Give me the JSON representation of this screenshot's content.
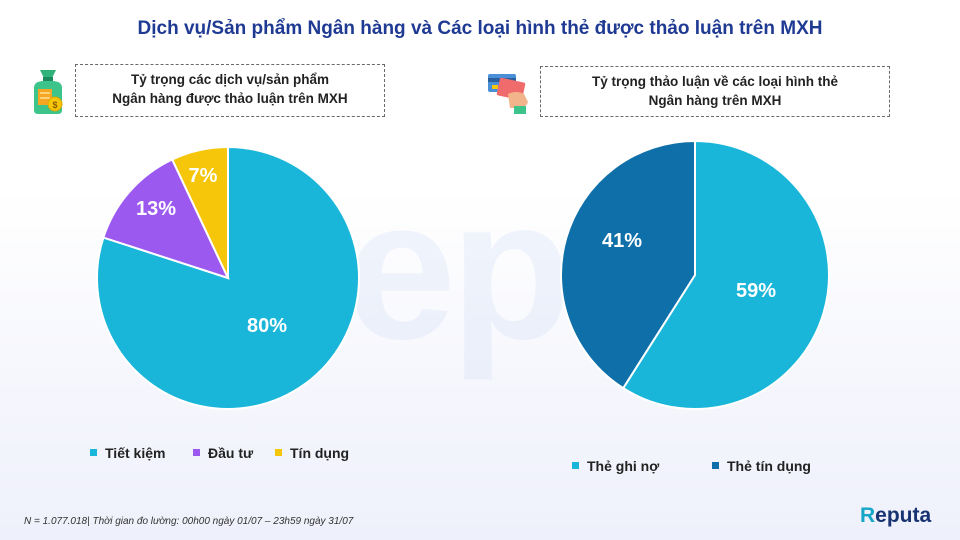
{
  "title": "Dịch vụ/Sản phẩm Ngân hàng và Các loại hình thẻ được thảo luận trên MXH",
  "watermark_text": "epu",
  "panels": [
    {
      "title_line1": "Tỷ trọng các dịch vụ/sản phẩm",
      "title_line2": "Ngân hàng được thảo luận trên MXH",
      "icon": "money-bag-icon"
    },
    {
      "title_line1": "Tỷ trọng thảo luận về các loại hình thẻ",
      "title_line2": "Ngân hàng trên MXH",
      "icon": "credit-card-icon"
    }
  ],
  "chart_data": [
    {
      "type": "pie",
      "title": "Tỷ trọng các dịch vụ/sản phẩm Ngân hàng được thảo luận trên MXH",
      "labels": [
        "Tiết kiệm",
        "Đầu tư",
        "Tín dụng"
      ],
      "values": [
        80,
        13,
        7
      ],
      "data_labels": [
        "80%",
        "13%",
        "7%"
      ],
      "colors": [
        "#1ab6d9",
        "#9b59f0",
        "#f5c60a"
      ],
      "legend_position": "bottom"
    },
    {
      "type": "pie",
      "title": "Tỷ trọng thảo luận về các loại hình thẻ Ngân hàng trên MXH",
      "labels": [
        "Thẻ ghi nợ",
        "Thẻ tín dụng"
      ],
      "values": [
        59,
        41
      ],
      "data_labels": [
        "59%",
        "41%"
      ],
      "colors": [
        "#1ab6d9",
        "#0f6fa8"
      ],
      "legend_position": "bottom"
    }
  ],
  "footnote": "N = 1.077.018| Thời gian đo lường: 00h00 ngày 01/07 – 23h59 ngày 31/07",
  "brand": {
    "initial": "R",
    "rest": "eputa"
  }
}
